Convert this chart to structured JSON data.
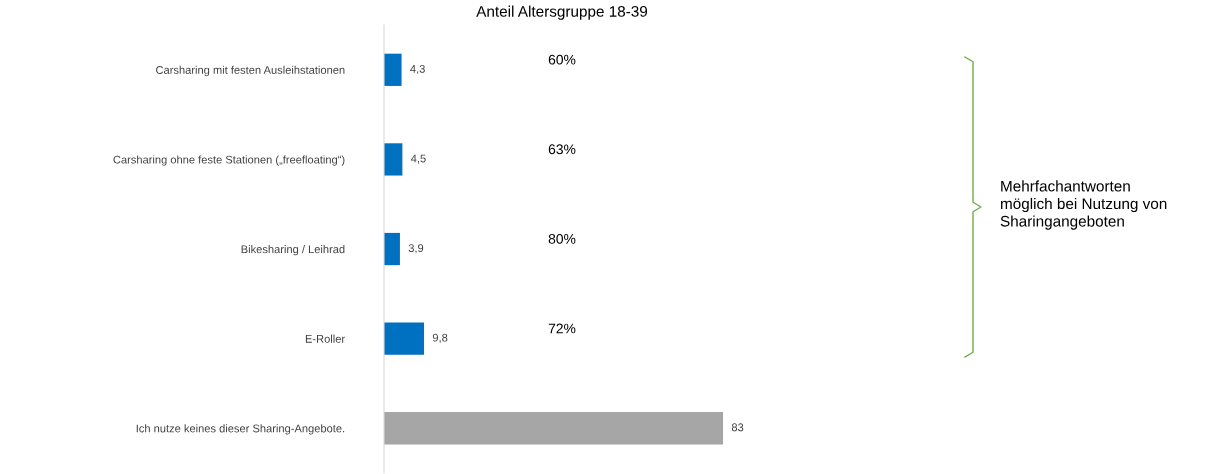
{
  "chart_data": {
    "type": "bar",
    "orientation": "horizontal",
    "title": "Anteil Altersgruppe 18-39",
    "categories": [
      "Carsharing mit festen Ausleihstationen",
      "Carsharing ohne feste Stationen („freefloating“)",
      "Bikesharing / Leihrad",
      "E-Roller",
      "Ich nutze keines dieser Sharing-Angebote."
    ],
    "values": [
      4.3,
      4.5,
      3.9,
      9.8,
      83
    ],
    "value_labels": [
      "4,3",
      "4,5",
      "3,9",
      "9,8",
      "83"
    ],
    "colors": [
      "#0070c0",
      "#0070c0",
      "#0070c0",
      "#0070c0",
      "#a6a6a6"
    ],
    "tick_labels": "y",
    "grid": false,
    "legend": false,
    "annotations": [
      "60%",
      "63%",
      "80%",
      "72%",
      "Mehrfachantworten\nmöglich bei Nutzung von\nSharingangeboten"
    ]
  }
}
